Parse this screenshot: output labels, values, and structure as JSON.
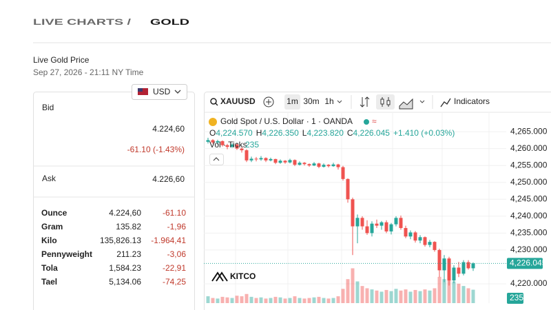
{
  "header": {
    "title_prefix": "LIVE CHARTS /",
    "title_main": "GOLD"
  },
  "price_info": {
    "title": "Live Gold Price",
    "timestamp": "Sep 27, 2026 - 21:11 NY Time",
    "currency": "USD",
    "bid_label": "Bid",
    "bid": "4.224,60",
    "bid_change": "-61.10 (-1.43%)",
    "ask_label": "Ask",
    "ask": "4.226,60",
    "units": [
      [
        "Ounce",
        "4.224,60",
        "-61.10"
      ],
      [
        "Gram",
        "135.82",
        "-1,96"
      ],
      [
        "Kilo",
        "135,826.13",
        "-1.964,41"
      ],
      [
        "Pennyweight",
        "211.23",
        "-3,06"
      ],
      [
        "Tola",
        "1,584.23",
        "-22,91"
      ],
      [
        "Tael",
        "5,134.06",
        "-74,25"
      ]
    ]
  },
  "chart": {
    "type": "candlestick",
    "toolbar": {
      "symbol": "XAUUSD",
      "intervals": [
        "1m",
        "30m",
        "1h"
      ],
      "indicators": "Indicators"
    },
    "legend": {
      "title": "Gold Spot / U.S. Dollar · 1 · OANDA",
      "ohlc": [
        {
          "label": "O",
          "value": "4,224.570"
        },
        {
          "label": "H",
          "value": "4,226.350"
        },
        {
          "label": "L",
          "value": "4,223.820"
        },
        {
          "label": "C",
          "value": "4,226.045"
        }
      ],
      "change": "+1.410 (+0.03%)",
      "volume_title": "Vol · Ticks"
    },
    "watermark": "KITCO",
    "up_color": "#26a69a",
    "down_color": "#ef5350",
    "open": [
      4262.0,
      4262.5,
      4261.8,
      4262.2,
      4261.0,
      4260.5,
      4261.2,
      4260.0,
      4259.5,
      4256.5,
      4257.0,
      4256.8,
      4257.2,
      4256.5,
      4256.9,
      4255.8,
      4256.4,
      4255.9,
      4256.6,
      4255.2,
      4255.8,
      4255.4,
      4255.0,
      4255.6,
      4254.6,
      4255.2,
      4254.8,
      4255.3,
      4254.5,
      4251.0,
      4245.0,
      4237.0,
      4239.5,
      4237.0,
      4235.0,
      4237.8,
      4237.2,
      4238.2,
      4235.5,
      4237.6,
      4239.5,
      4236.5,
      4234.0,
      4235.2,
      4232.8,
      4233.8,
      4231.5,
      4232.4,
      4230.0,
      4224.0,
      4227.5,
      4221.0,
      4224.8,
      4223.0,
      4226.4,
      4224.6
    ],
    "high": [
      4263.2,
      4262.8,
      4262.6,
      4262.4,
      4261.4,
      4261.6,
      4261.5,
      4260.4,
      4259.8,
      4257.6,
      4257.5,
      4257.8,
      4257.4,
      4257.3,
      4257.0,
      4256.8,
      4256.6,
      4257.0,
      4256.8,
      4256.2,
      4256.0,
      4255.6,
      4256.0,
      4255.8,
      4255.6,
      4255.4,
      4255.8,
      4255.5,
      4254.9,
      4251.2,
      4245.5,
      4240.5,
      4240.0,
      4238.8,
      4238.5,
      4239.0,
      4238.6,
      4238.8,
      4238.0,
      4240.0,
      4240.2,
      4237.2,
      4235.8,
      4235.6,
      4234.4,
      4234.0,
      4233.0,
      4232.6,
      4230.4,
      4228.5,
      4228.0,
      4225.5,
      4226.5,
      4227.0,
      4227.0,
      4226.35
    ],
    "low": [
      4261.5,
      4261.4,
      4261.2,
      4260.6,
      4259.8,
      4260.2,
      4259.6,
      4258.8,
      4256.0,
      4256.0,
      4256.2,
      4256.4,
      4256.0,
      4256.2,
      4255.4,
      4255.5,
      4255.5,
      4255.6,
      4254.8,
      4255.0,
      4255.0,
      4254.6,
      4254.8,
      4254.2,
      4254.4,
      4254.4,
      4254.6,
      4253.8,
      4250.5,
      4244.0,
      4228.5,
      4232.0,
      4236.0,
      4234.5,
      4234.0,
      4236.5,
      4236.0,
      4235.0,
      4234.6,
      4237.0,
      4236.0,
      4233.5,
      4233.2,
      4232.2,
      4232.0,
      4231.0,
      4230.8,
      4229.5,
      4222.0,
      4220.5,
      4219.5,
      4220.2,
      4222.0,
      4222.5,
      4224.2,
      4223.82
    ],
    "close": [
      4262.5,
      4261.8,
      4262.2,
      4261.0,
      4260.5,
      4261.2,
      4260.0,
      4259.5,
      4256.5,
      4257.0,
      4256.8,
      4257.2,
      4256.5,
      4256.9,
      4255.8,
      4256.4,
      4255.9,
      4256.6,
      4255.2,
      4255.8,
      4255.4,
      4255.0,
      4255.6,
      4254.6,
      4255.2,
      4254.8,
      4255.3,
      4254.5,
      4251.0,
      4245.0,
      4237.0,
      4239.5,
      4237.0,
      4235.0,
      4237.8,
      4237.2,
      4238.2,
      4235.5,
      4237.6,
      4239.5,
      4236.5,
      4234.0,
      4235.2,
      4232.8,
      4233.8,
      4231.5,
      4232.4,
      4230.0,
      4224.0,
      4227.5,
      4221.0,
      4224.8,
      4223.0,
      4226.4,
      4224.6,
      4226.045
    ],
    "volume": [
      120,
      90,
      80,
      110,
      100,
      90,
      130,
      120,
      160,
      110,
      90,
      100,
      80,
      90,
      110,
      100,
      80,
      90,
      120,
      90,
      80,
      90,
      100,
      110,
      90,
      80,
      90,
      120,
      250,
      420,
      610,
      380,
      300,
      260,
      240,
      220,
      200,
      230,
      210,
      250,
      220,
      240,
      200,
      230,
      210,
      240,
      220,
      260,
      460,
      420,
      480,
      380,
      340,
      300,
      260,
      235
    ],
    "volume_lim": [
      0,
      700
    ],
    "ylim": [
      4214.3,
      4269.3
    ],
    "yticks": [
      {
        "value": 4265,
        "label": "4,265.000"
      },
      {
        "value": 4260,
        "label": "4,260.000"
      },
      {
        "value": 4255,
        "label": "4,255.000"
      },
      {
        "value": 4250,
        "label": "4,250.000"
      },
      {
        "value": 4245,
        "label": "4,245.000"
      },
      {
        "value": 4240,
        "label": "4,240.000"
      },
      {
        "value": 4235,
        "label": "4,235.000"
      },
      {
        "value": 4230,
        "label": "4,230.000"
      },
      {
        "value": 4220,
        "label": "4,220.000"
      }
    ],
    "current_price": {
      "value": 4226.045,
      "label": "4,226.045"
    }
  }
}
